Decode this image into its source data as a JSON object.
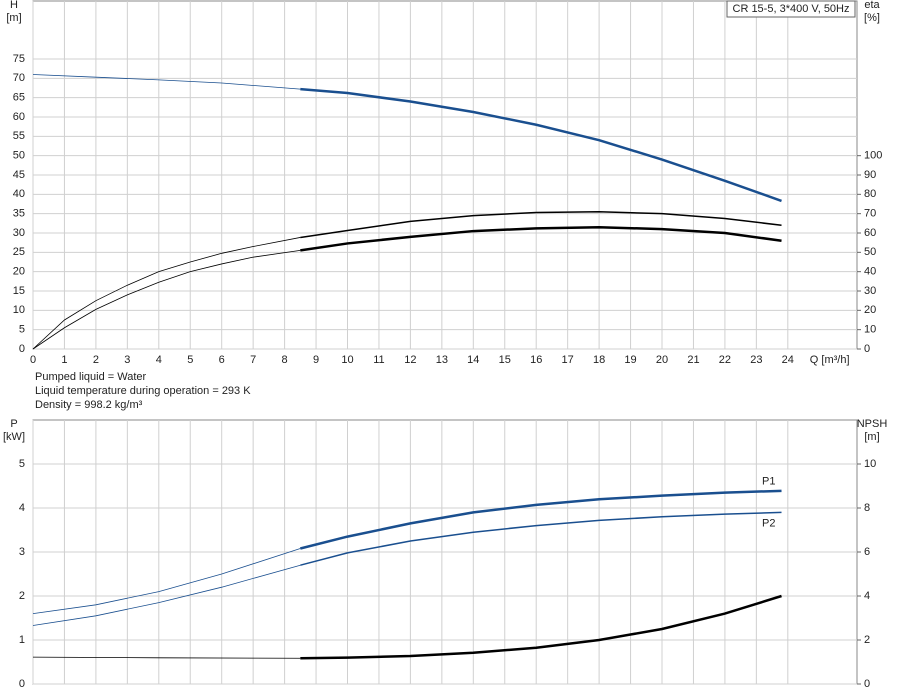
{
  "chart_data": [
    {
      "type": "line",
      "legend_box": "CR 15-5, 3*400 V, 50Hz",
      "ylabel": "H",
      "yunit": "[m]",
      "y2label": "eta",
      "y2unit": "[%]",
      "xlabel": "Q [m³/h]",
      "xlim": [
        0,
        26.2
      ],
      "xticks": [
        0,
        1,
        2,
        3,
        4,
        5,
        6,
        7,
        8,
        9,
        10,
        11,
        12,
        13,
        14,
        15,
        16,
        17,
        18,
        19,
        20,
        21,
        22,
        23,
        24
      ],
      "xtick_labels": true,
      "ylim": [
        0,
        90
      ],
      "yticks": [
        0,
        5,
        10,
        15,
        20,
        25,
        30,
        35,
        40,
        45,
        50,
        55,
        60,
        65,
        70,
        75
      ],
      "y2lim": [
        0,
        180
      ],
      "y2ticks": [
        0,
        10,
        20,
        30,
        40,
        50,
        60,
        70,
        80,
        90,
        100
      ],
      "grid": true,
      "series": [
        {
          "color": "#1a4f8f",
          "width": 0.8,
          "x": [
            0,
            2,
            4,
            6,
            8.5
          ],
          "values": [
            71,
            70.3,
            69.6,
            68.8,
            67.2
          ]
        },
        {
          "color": "#1a4f8f",
          "width": 2.5,
          "x": [
            8.5,
            10,
            12,
            14,
            16,
            18,
            20,
            22,
            23.8
          ],
          "values": [
            67.2,
            66.2,
            64,
            61.3,
            58,
            54,
            49,
            43.5,
            38.3
          ]
        },
        {
          "color": "#000000",
          "width": 0.8,
          "axis": "y2",
          "x": [
            0,
            1,
            2,
            3,
            4,
            5,
            6,
            7,
            8.5
          ],
          "values": [
            0,
            15,
            25,
            33,
            40,
            45,
            49.5,
            53,
            57.7
          ]
        },
        {
          "color": "#000000",
          "width": 1.5,
          "axis": "y2",
          "x": [
            8.5,
            10,
            12,
            14,
            16,
            18,
            20,
            22,
            23.8
          ],
          "values": [
            57.7,
            61.3,
            66,
            69,
            70.6,
            71,
            70,
            67.5,
            64
          ]
        },
        {
          "color": "#000000",
          "width": 0.8,
          "axis": "y2",
          "x": [
            0,
            1,
            2,
            3,
            4,
            5,
            6,
            7,
            8.5
          ],
          "values": [
            0,
            11,
            20.5,
            28,
            34.5,
            40,
            44,
            47.5,
            51
          ]
        },
        {
          "color": "#000000",
          "width": 2.5,
          "axis": "y2",
          "x": [
            8.5,
            10,
            12,
            14,
            16,
            18,
            20,
            22,
            23.8
          ],
          "values": [
            51,
            54.6,
            58,
            61,
            62.4,
            63,
            62,
            60,
            56
          ]
        }
      ]
    },
    {
      "type": "line",
      "ylabel": "P",
      "yunit": "[kW]",
      "y2label": "NPSH",
      "y2unit": "[m]",
      "xlim": [
        0,
        26.2
      ],
      "xticks": [
        0,
        1,
        2,
        3,
        4,
        5,
        6,
        7,
        8,
        9,
        10,
        11,
        12,
        13,
        14,
        15,
        16,
        17,
        18,
        19,
        20,
        21,
        22,
        23,
        24
      ],
      "xtick_labels": false,
      "ylim": [
        0,
        6
      ],
      "yticks": [
        0,
        1,
        2,
        3,
        4,
        5
      ],
      "y2lim": [
        0,
        12
      ],
      "y2ticks": [
        0,
        2,
        4,
        6,
        8,
        10
      ],
      "grid": true,
      "series": [
        {
          "color": "#1a4f8f",
          "width": 0.8,
          "x": [
            0,
            2,
            4,
            6,
            8.5
          ],
          "values": [
            1.6,
            1.8,
            2.1,
            2.5,
            3.08
          ]
        },
        {
          "name": "P1",
          "color": "#1a4f8f",
          "width": 2.5,
          "x": [
            8.5,
            10,
            12,
            14,
            16,
            18,
            20,
            22,
            23.8
          ],
          "values": [
            3.08,
            3.35,
            3.65,
            3.9,
            4.07,
            4.2,
            4.28,
            4.35,
            4.39
          ]
        },
        {
          "color": "#1a4f8f",
          "width": 0.8,
          "x": [
            0,
            2,
            4,
            6,
            8.5
          ],
          "values": [
            1.33,
            1.55,
            1.85,
            2.2,
            2.7
          ]
        },
        {
          "name": "P2",
          "color": "#1a4f8f",
          "width": 1.5,
          "x": [
            8.5,
            10,
            12,
            14,
            16,
            18,
            20,
            22,
            23.8
          ],
          "values": [
            2.7,
            2.98,
            3.25,
            3.45,
            3.6,
            3.72,
            3.8,
            3.86,
            3.9
          ]
        },
        {
          "color": "#000000",
          "width": 0.8,
          "axis": "y2",
          "x": [
            0,
            4,
            8.5
          ],
          "values": [
            1.22,
            1.19,
            1.17
          ]
        },
        {
          "color": "#000000",
          "width": 2.5,
          "axis": "y2",
          "x": [
            8.5,
            10,
            12,
            14,
            16,
            18,
            20,
            22,
            23.8
          ],
          "values": [
            1.17,
            1.2,
            1.27,
            1.42,
            1.65,
            2.0,
            2.5,
            3.2,
            4.0
          ]
        }
      ]
    }
  ],
  "info": [
    "Pumped liquid = Water",
    "Liquid temperature during operation = 293 K",
    "Density = 998.2 kg/m³"
  ]
}
